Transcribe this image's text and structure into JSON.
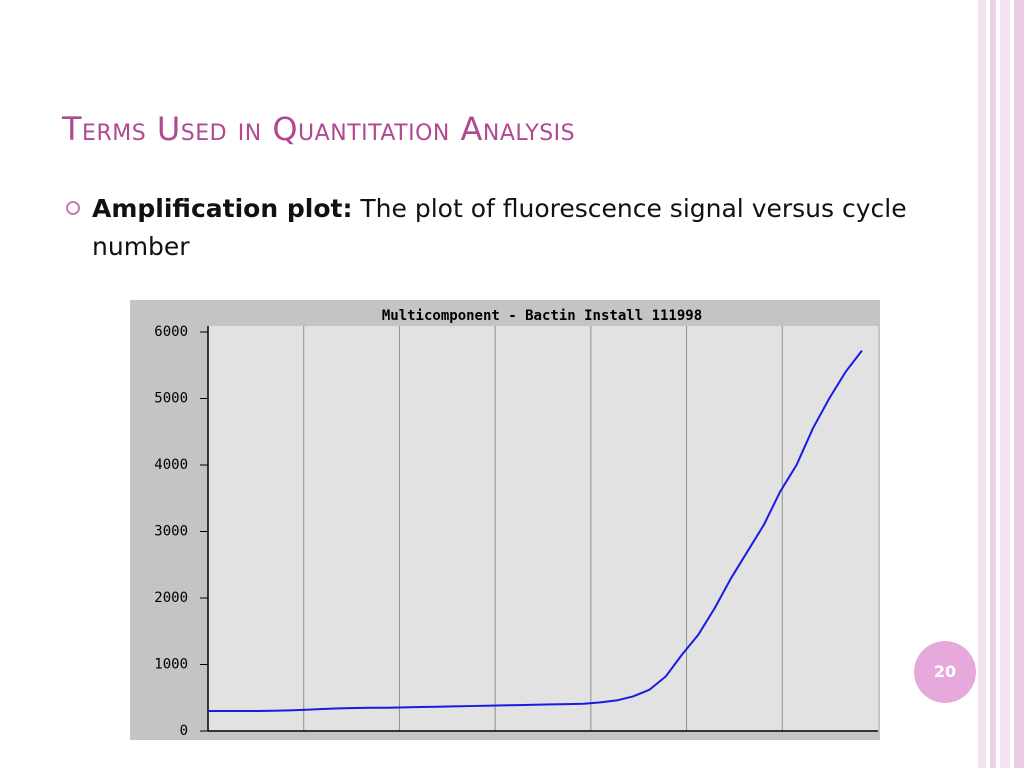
{
  "slide": {
    "title": "Terms Used in Quantitation Analysis",
    "bullet_term": "Amplification plot:",
    "bullet_text": "The plot of fluorescence signal versus cycle number",
    "page_number": "20"
  },
  "chart_data": {
    "type": "line",
    "title": "Multicomponent - Bactin Install 111998",
    "series": [
      {
        "color": "#1a1ae6",
        "values": [
          300,
          300,
          300,
          300,
          305,
          310,
          320,
          330,
          340,
          345,
          350,
          350,
          355,
          360,
          365,
          370,
          375,
          380,
          385,
          390,
          395,
          400,
          405,
          410,
          430,
          460,
          520,
          620,
          820,
          1150,
          1450,
          1850,
          2300,
          2700,
          3100,
          3600,
          4000,
          4550,
          5000,
          5400,
          5720
        ]
      }
    ],
    "ylim": [
      0,
      6000
    ],
    "yticks": [
      0,
      1000,
      2000,
      3000,
      4000,
      5000,
      6000
    ],
    "grid": true,
    "x_grid_divisions": 7
  }
}
